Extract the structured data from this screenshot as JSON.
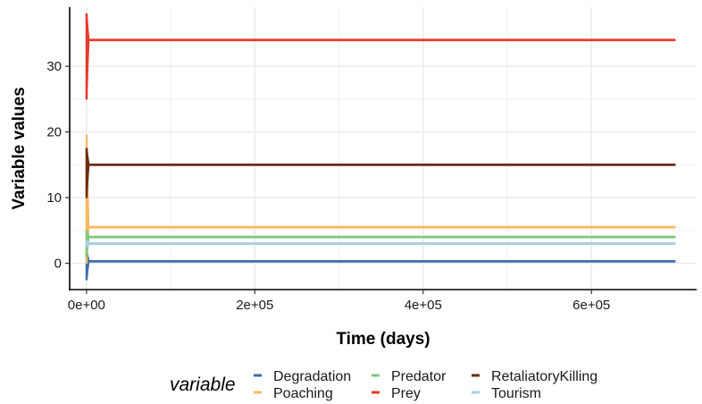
{
  "chart_data": {
    "type": "line",
    "title": "",
    "xlabel": "Time (days)",
    "ylabel": "Variable values",
    "xlim": [
      -20000,
      725000
    ],
    "ylim": [
      -4,
      39
    ],
    "x_ticks": [
      0,
      200000,
      400000,
      600000
    ],
    "x_tick_labels": [
      "0e+00",
      "2e+05",
      "4e+05",
      "6e+05"
    ],
    "y_ticks": [
      0,
      10,
      20,
      30
    ],
    "y_tick_labels": [
      "0",
      "10",
      "20",
      "30"
    ],
    "grid": true,
    "legend": {
      "title": "variable",
      "placement": "bottom",
      "columns": 3
    },
    "series": [
      {
        "name": "Degradation",
        "color": "#3a6ea8",
        "steady_value": 0.3,
        "x_end": 700000,
        "transient": {
          "x_start": 0,
          "max": 2,
          "min": -2.5
        }
      },
      {
        "name": "Poaching",
        "color": "#fdb863",
        "steady_value": 5.5,
        "x_end": 700000,
        "transient": {
          "x_start": 0,
          "max": 19.5,
          "min": 0
        }
      },
      {
        "name": "Predator",
        "color": "#7fc97f",
        "steady_value": 4.0,
        "x_end": 700000,
        "transient": {
          "x_start": 0,
          "max": 5,
          "min": 1
        }
      },
      {
        "name": "Prey",
        "color": "#e8392a",
        "steady_value": 34,
        "x_end": 700000,
        "transient": {
          "x_start": 0,
          "max": 38,
          "min": 25
        }
      },
      {
        "name": "RetaliatoryKilling",
        "color": "#6b2c12",
        "steady_value": 15,
        "x_end": 700000,
        "transient": {
          "x_start": 0,
          "max": 17.5,
          "min": 10
        }
      },
      {
        "name": "Tourism",
        "color": "#a6cee3",
        "steady_value": 3.0,
        "x_end": 700000,
        "transient": {
          "x_start": 0,
          "max": 3.5,
          "min": 2.5
        }
      }
    ]
  }
}
